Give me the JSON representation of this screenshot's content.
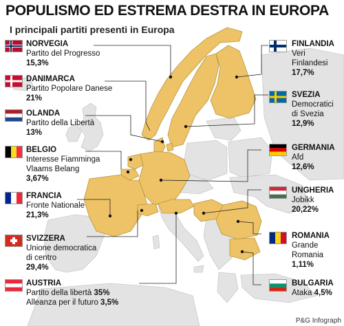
{
  "title": "POPULISMO ED ESTREMA DESTRA IN EUROPA",
  "subtitle": "I principali partiti presenti in Europa",
  "credit": "P&G Infograph",
  "colors": {
    "highlight": "#eec266",
    "border": "#b5963f",
    "background_land": "#e3e3e3",
    "sea": "#ffffff"
  },
  "countries": [
    {
      "name": "NORVEGIA",
      "party": "Partito del Progresso",
      "percent": "15,3%",
      "flag": "norway"
    },
    {
      "name": "DANIMARCA",
      "party": "Partito Popolare Danese",
      "percent": "21%",
      "flag": "denmark"
    },
    {
      "name": "OLANDA",
      "party": "Partito della Libertà",
      "percent": "13%",
      "flag": "netherlands"
    },
    {
      "name": "BELGIO",
      "party_lines": [
        "Interesse Fiamminga",
        "Vlaams Belang"
      ],
      "percent": "3,67%",
      "flag": "belgium"
    },
    {
      "name": "FRANCIA",
      "party": "Fronte Nationale",
      "percent": "21,3%",
      "flag": "france"
    },
    {
      "name": "SVIZZERA",
      "party_lines": [
        "Unione democratica",
        "di centro"
      ],
      "percent": "29,4%",
      "flag": "switzerland"
    },
    {
      "name": "AUSTRIA",
      "parties": [
        {
          "label": "Partito della libertà",
          "percent": "35%"
        },
        {
          "label": "Alleanza per il futuro",
          "percent": "3,5%"
        }
      ],
      "flag": "austria"
    },
    {
      "name": "FINLANDIA",
      "party_lines": [
        "Veri",
        "Finlandesi"
      ],
      "percent": "17,7%",
      "flag": "finland"
    },
    {
      "name": "SVEZIA",
      "party_lines": [
        "Democratici",
        "di Svezia"
      ],
      "percent": "12,9%",
      "flag": "sweden"
    },
    {
      "name": "GERMANIA",
      "party": "Afd",
      "percent": "12,6%",
      "flag": "germany"
    },
    {
      "name": "UNGHERIA",
      "party": "Jobikk",
      "percent": "20,22%",
      "flag": "hungary"
    },
    {
      "name": "ROMANIA",
      "party_lines": [
        "Grande",
        "Romania"
      ],
      "percent": "1,11%",
      "flag": "romania"
    },
    {
      "name": "BULGARIA",
      "party": "Ataka",
      "percent": "4,5%",
      "flag": "bulgaria"
    }
  ]
}
